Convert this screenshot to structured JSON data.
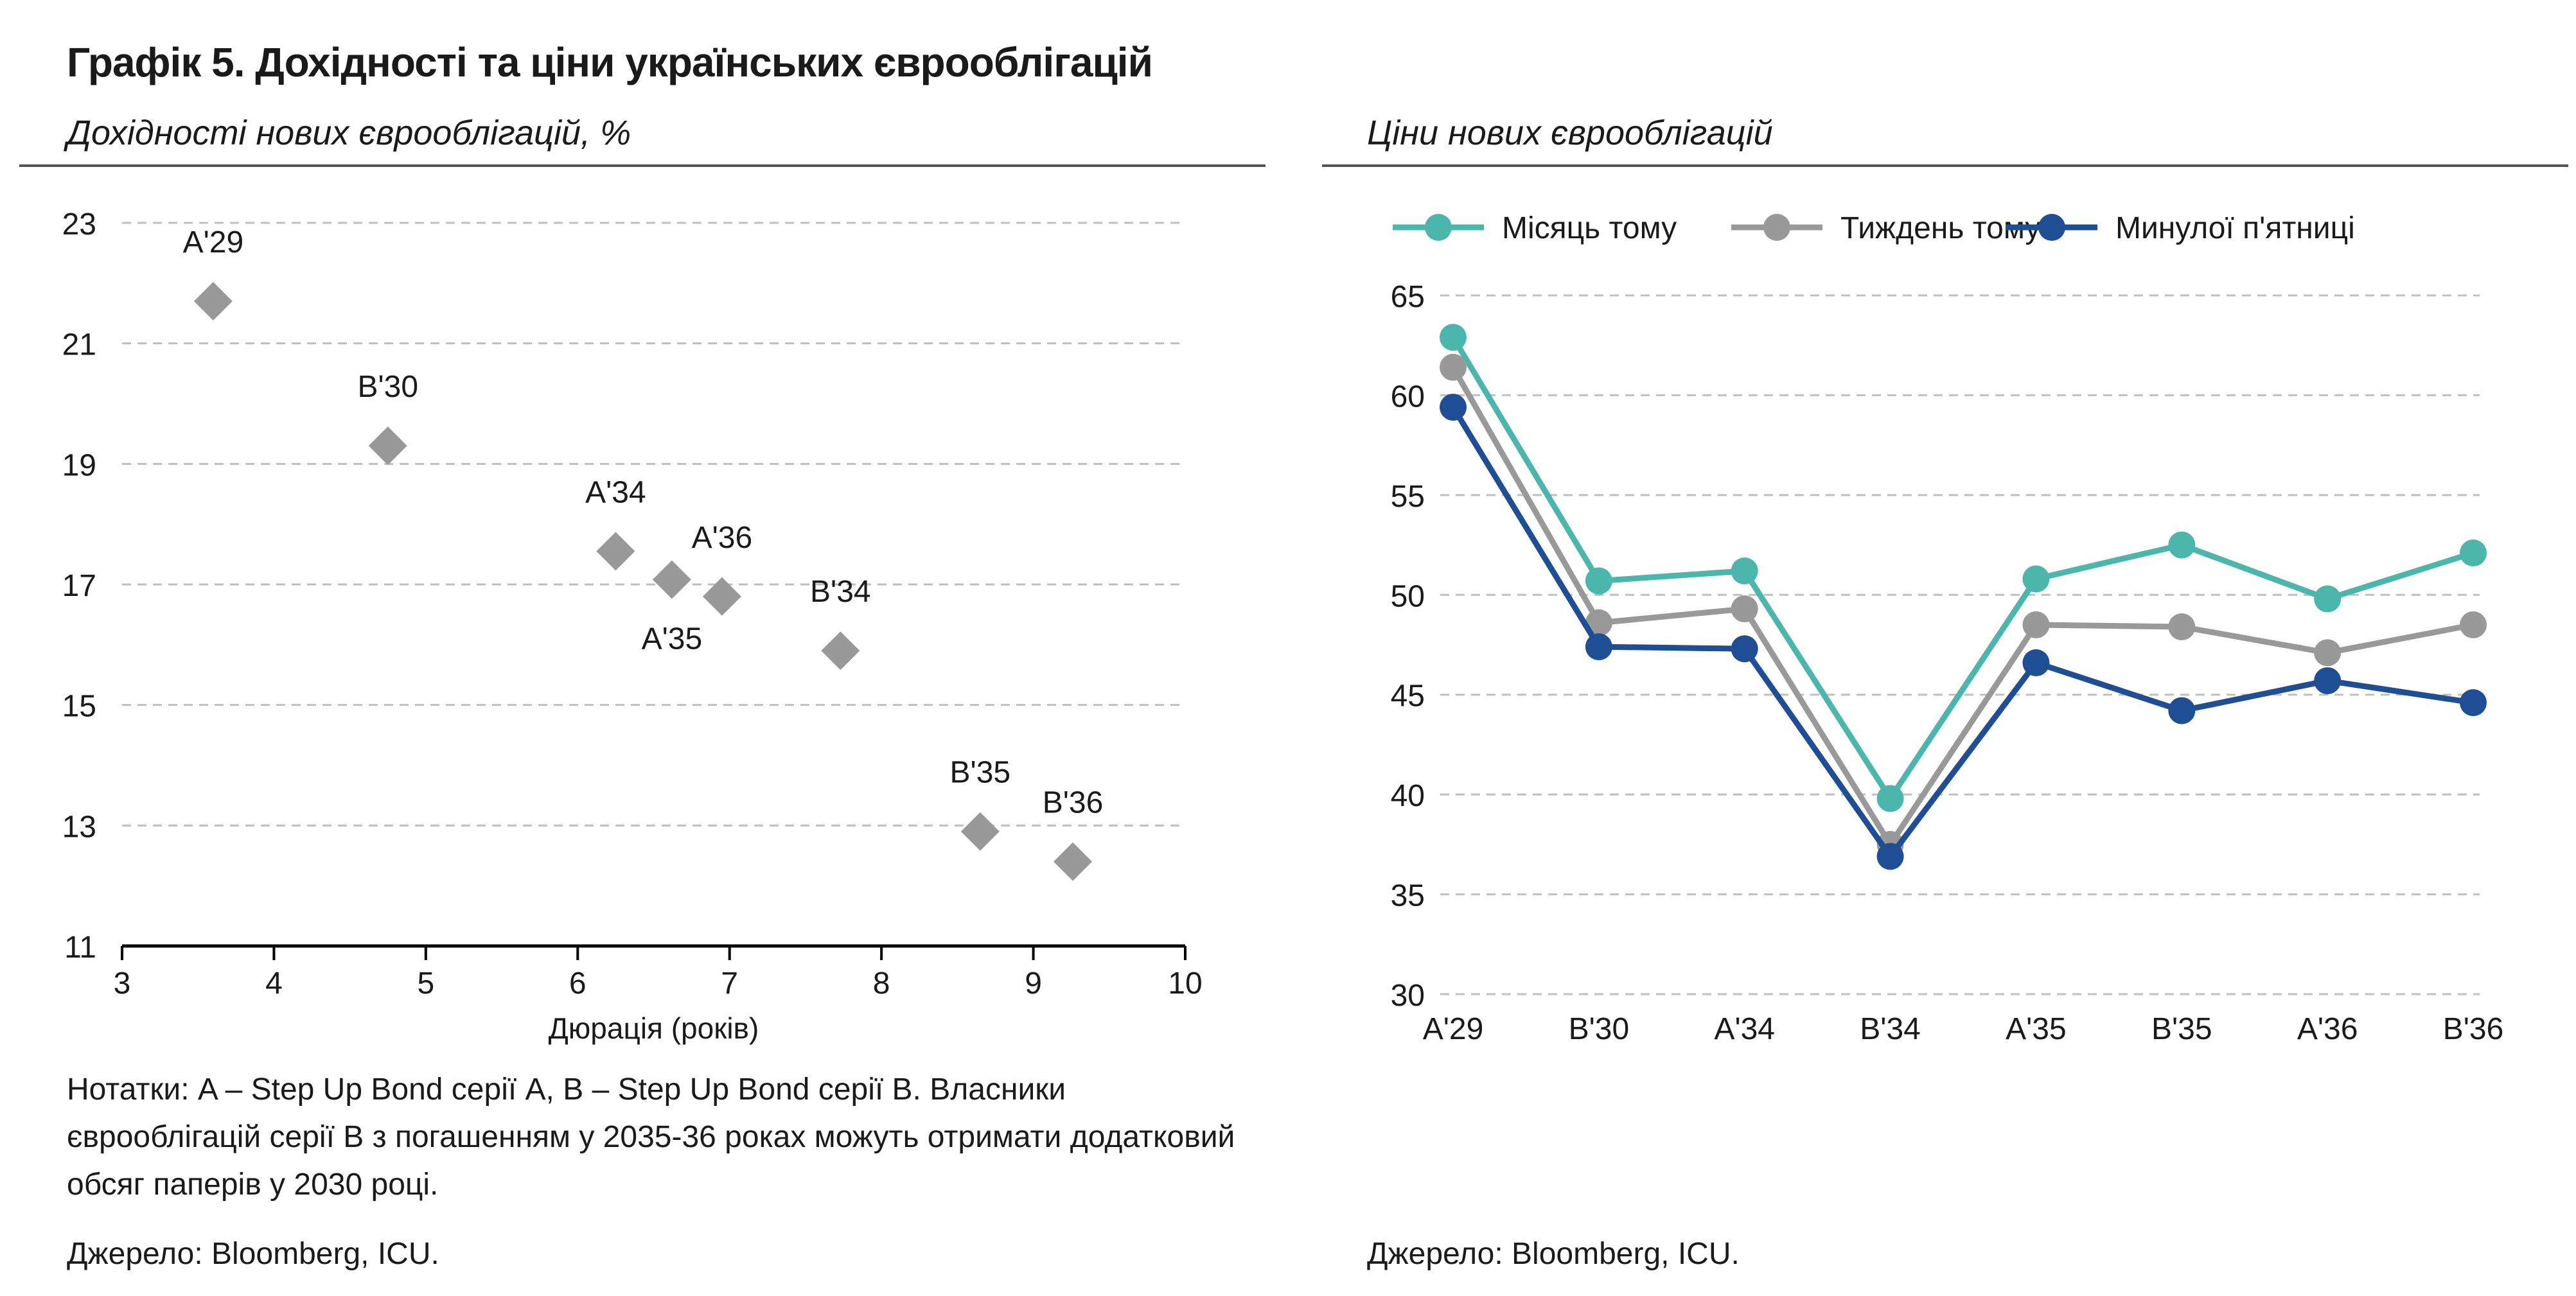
{
  "title": "Графік 5. Дохідності та ціни українських єврооблігацій",
  "notes": "Нотатки: A – Step Up Bond серії A, B – Step Up Bond серії B. Власники єврооблігацій серії B з погашенням у 2035-36 роках можуть отримати додатковий обсяг паперів у 2030 році.",
  "source_left": "Джерело: Bloomberg, ICU.",
  "source_right": "Джерело: Bloomberg, ICU.",
  "colors": {
    "scatter_marker": "#999999",
    "month_ago": "#4db6ac",
    "week_ago": "#999999",
    "last_friday": "#1f4e95",
    "gridline": "#bfbfbf",
    "axis": "#000000"
  },
  "chart_data": [
    {
      "type": "scatter",
      "title": "Дохідності нових єврооблігацій, %",
      "xlabel": "Дюрація (років)",
      "ylabel": "",
      "xlim": [
        3,
        10
      ],
      "ylim": [
        11,
        23
      ],
      "xticks": [
        3,
        4,
        5,
        6,
        7,
        8,
        9,
        10
      ],
      "yticks": [
        11,
        13,
        15,
        17,
        19,
        21,
        23
      ],
      "grid": true,
      "points": [
        {
          "label": "A'29",
          "x": 3.6,
          "y": 21.7,
          "label_pos": "above"
        },
        {
          "label": "B'30",
          "x": 4.75,
          "y": 19.3,
          "label_pos": "above"
        },
        {
          "label": "A'34",
          "x": 6.25,
          "y": 17.55,
          "label_pos": "above"
        },
        {
          "label": "A'35",
          "x": 6.62,
          "y": 17.08,
          "label_pos": "below"
        },
        {
          "label": "A'36",
          "x": 6.95,
          "y": 16.8,
          "label_pos": "above"
        },
        {
          "label": "B'34",
          "x": 7.73,
          "y": 15.9,
          "label_pos": "above"
        },
        {
          "label": "B'35",
          "x": 8.65,
          "y": 12.9,
          "label_pos": "above"
        },
        {
          "label": "B'36",
          "x": 9.26,
          "y": 12.4,
          "label_pos": "above"
        }
      ]
    },
    {
      "type": "line",
      "title": "Ціни нових єврооблігацій",
      "xlabel": "",
      "ylabel": "",
      "categories": [
        "A'29",
        "B'30",
        "A'34",
        "B'34",
        "A'35",
        "B'35",
        "A'36",
        "B'36"
      ],
      "ylim": [
        30,
        65
      ],
      "yticks": [
        30,
        35,
        40,
        45,
        50,
        55,
        60,
        65
      ],
      "grid": true,
      "legend_position": "top",
      "series": [
        {
          "name": "Місяць тому",
          "values": [
            62.9,
            50.7,
            51.2,
            39.8,
            50.8,
            52.5,
            49.8,
            52.1
          ]
        },
        {
          "name": "Тиждень тому",
          "values": [
            61.4,
            48.6,
            49.3,
            37.5,
            48.5,
            48.4,
            47.1,
            48.5
          ]
        },
        {
          "name": "Минулої п'ятниці",
          "values": [
            59.4,
            47.4,
            47.3,
            36.9,
            46.6,
            44.2,
            45.7,
            44.6
          ]
        }
      ]
    }
  ]
}
